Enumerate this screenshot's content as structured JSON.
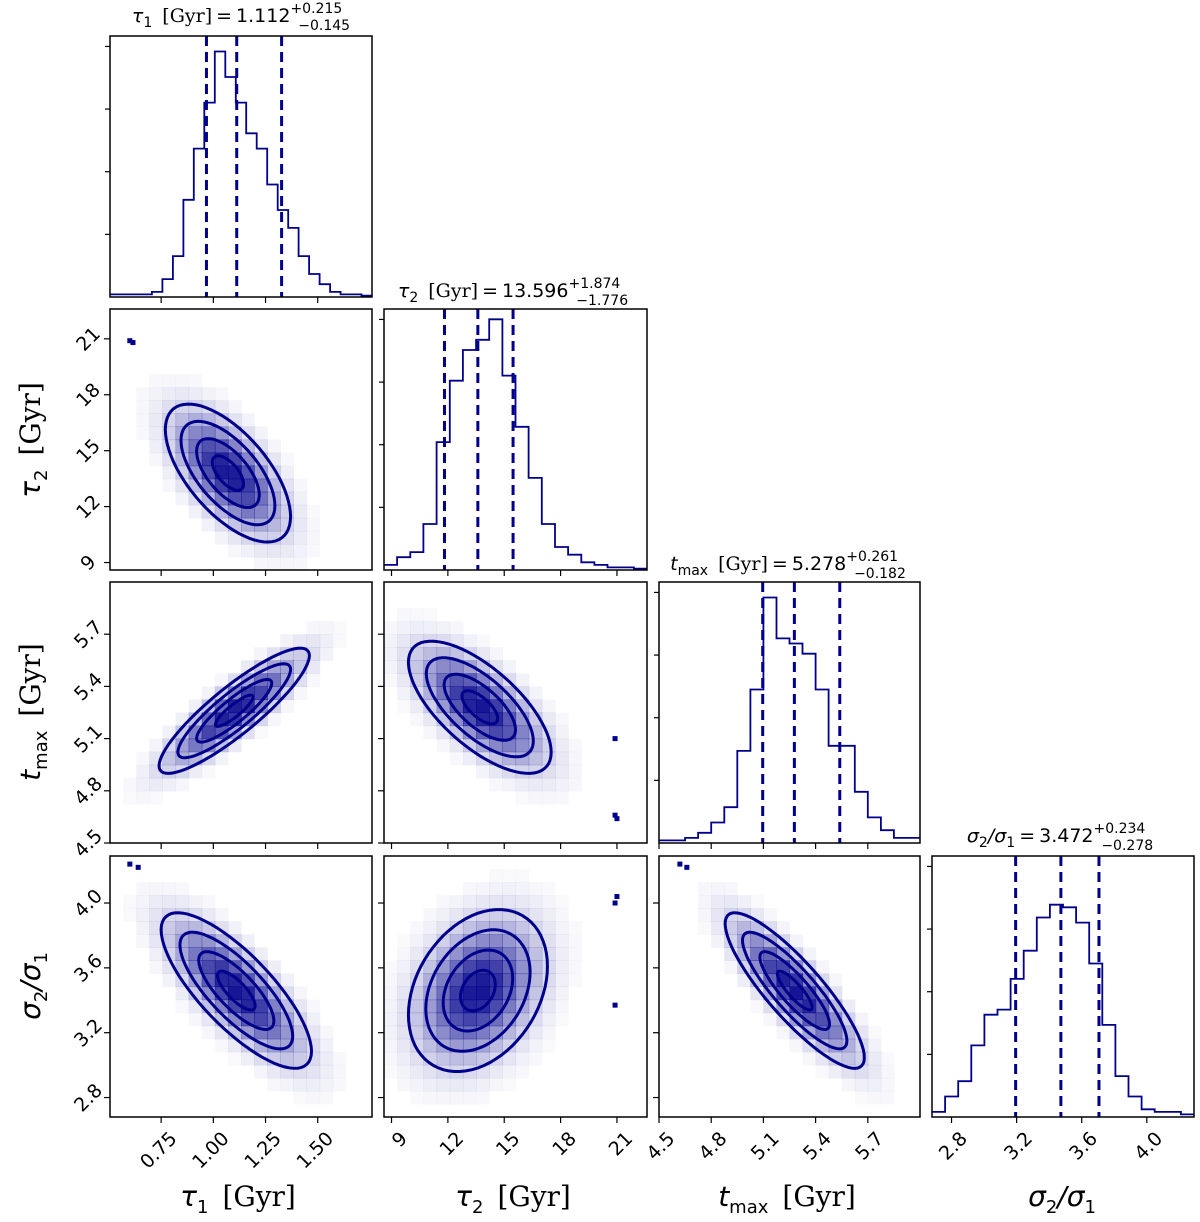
{
  "chart_data": {
    "type": "corner",
    "colors": {
      "line": "#00008b",
      "density": "#00008b",
      "frame": "#000000"
    },
    "parameters": [
      {
        "key": "tau1",
        "symbol": "τ",
        "subscript": "1",
        "unit": "[Gyr]",
        "axis_label": "τ1 [Gyr]",
        "range": [
          0.505,
          1.76
        ],
        "ticks": [
          0.75,
          1.0,
          1.25,
          1.5
        ],
        "tick_labels": [
          "0.75",
          "1.00",
          "1.25",
          "1.50"
        ],
        "title_prefix": "[Gyr] = ",
        "median": "1.112",
        "err_plus": "+0.215",
        "err_minus": "−0.145",
        "median_value": 1.112,
        "q_low": 0.967,
        "q_high": 1.327,
        "hist_counts": [
          0.01,
          0.01,
          0.01,
          0.01,
          0.02,
          0.07,
          0.16,
          0.38,
          0.58,
          0.76,
          0.96,
          0.86,
          0.76,
          0.64,
          0.58,
          0.44,
          0.34,
          0.27,
          0.16,
          0.09,
          0.05,
          0.02,
          0.01,
          0.01,
          0.005
        ]
      },
      {
        "key": "tau2",
        "symbol": "τ",
        "subscript": "2",
        "unit": "[Gyr]",
        "axis_label": "τ2 [Gyr]",
        "range": [
          8.6,
          22.6
        ],
        "ticks": [
          9,
          12,
          15,
          18,
          21
        ],
        "tick_labels": [
          "9",
          "12",
          "15",
          "18",
          "21"
        ],
        "title_prefix": "[Gyr] = ",
        "median": "13.596",
        "err_plus": "+1.874",
        "err_minus": "−1.776",
        "median_value": 13.596,
        "q_low": 11.82,
        "q_high": 15.47,
        "hist_counts": [
          0.02,
          0.05,
          0.07,
          0.18,
          0.5,
          0.74,
          0.86,
          0.9,
          0.98,
          0.76,
          0.56,
          0.36,
          0.18,
          0.09,
          0.06,
          0.03,
          0.02,
          0.01,
          0.01,
          0.005
        ]
      },
      {
        "key": "tmax",
        "symbol": "t",
        "subscript": "max",
        "unit": "[Gyr]",
        "axis_label": "tmax [Gyr]",
        "range": [
          4.5,
          6.0
        ],
        "ticks": [
          4.5,
          4.8,
          5.1,
          5.4,
          5.7
        ],
        "tick_labels": [
          "4.5",
          "4.8",
          "5.1",
          "5.4",
          "5.7"
        ],
        "title_prefix": "[Gyr] = ",
        "median": "5.278",
        "err_plus": "+0.261",
        "err_minus": "−0.182",
        "median_value": 5.278,
        "q_low": 5.096,
        "q_high": 5.539,
        "hist_counts": [
          0.01,
          0.01,
          0.02,
          0.04,
          0.08,
          0.14,
          0.36,
          0.6,
          0.96,
          0.8,
          0.78,
          0.74,
          0.6,
          0.38,
          0.38,
          0.2,
          0.1,
          0.05,
          0.02,
          0.02
        ]
      },
      {
        "key": "ratio",
        "symbol": "σ",
        "subscript": "2",
        "unit": "",
        "axis_label": "σ2/σ1",
        "range": [
          2.68,
          4.29
        ],
        "ticks": [
          2.8,
          3.2,
          3.6,
          4.0
        ],
        "tick_labels": [
          "2.8",
          "3.2",
          "3.6",
          "4.0"
        ],
        "title_prefix": "= ",
        "median": "3.472",
        "err_plus": "+0.234",
        "err_minus": "−0.278",
        "median_value": 3.472,
        "q_low": 3.194,
        "q_high": 3.706,
        "hist_counts": [
          0.02,
          0.08,
          0.14,
          0.28,
          0.4,
          0.42,
          0.54,
          0.65,
          0.78,
          0.83,
          0.82,
          0.76,
          0.6,
          0.36,
          0.16,
          0.08,
          0.03,
          0.02,
          0.02,
          0.01
        ]
      }
    ],
    "pairs": [
      {
        "x": 0,
        "y": 1,
        "mean": [
          1.07,
          13.8
        ],
        "sd": [
          0.15,
          1.85
        ],
        "rho": -0.63,
        "outliers": [
          [
            0.6,
            20.9
          ],
          [
            0.615,
            20.8
          ]
        ]
      },
      {
        "x": 0,
        "y": 2,
        "mean": [
          1.1,
          5.26
        ],
        "sd": [
          0.18,
          0.18
        ],
        "rho": 0.88,
        "outliers": []
      },
      {
        "x": 1,
        "y": 2,
        "mean": [
          13.7,
          5.28
        ],
        "sd": [
          1.9,
          0.19
        ],
        "rho": -0.68,
        "outliers": [
          [
            20.9,
            5.1
          ],
          [
            20.9,
            4.66
          ],
          [
            21.0,
            4.64
          ]
        ]
      },
      {
        "x": 0,
        "y": 3,
        "mean": [
          1.11,
          3.46
        ],
        "sd": [
          0.18,
          0.24
        ],
        "rho": -0.78,
        "outliers": [
          [
            0.6,
            4.24
          ],
          [
            0.64,
            4.22
          ]
        ]
      },
      {
        "x": 1,
        "y": 3,
        "mean": [
          13.6,
          3.46
        ],
        "sd": [
          1.85,
          0.25
        ],
        "rho": 0.3,
        "outliers": [
          [
            20.9,
            4.0
          ],
          [
            21.0,
            4.04
          ],
          [
            20.9,
            3.37
          ]
        ]
      },
      {
        "x": 2,
        "y": 3,
        "mean": [
          5.28,
          3.46
        ],
        "sd": [
          0.2,
          0.24
        ],
        "rho": -0.86,
        "outliers": [
          [
            4.62,
            4.24
          ],
          [
            4.66,
            4.22
          ]
        ]
      }
    ]
  },
  "labels": {
    "tau1_title": {
      "sym": "τ",
      "sub": "1",
      "unit": "[Gyr]",
      "eq": "=",
      "val": "1.112",
      "sup": "+0.215",
      "subv": "−0.145"
    },
    "tau2_title": {
      "sym": "τ",
      "sub": "2",
      "unit": "[Gyr]",
      "eq": "=",
      "val": "13.596",
      "sup": "+1.874",
      "subv": "−1.776"
    },
    "tmax_title": {
      "sym": "t",
      "sub": "max",
      "unit": "[Gyr]",
      "eq": "=",
      "val": "5.278",
      "sup": "+0.261",
      "subv": "−0.182"
    },
    "ratio_title": {
      "sym": "σ",
      "sub": "2",
      "slash": "/σ",
      "sub2": "1",
      "eq": "=",
      "val": "3.472",
      "sup": "+0.234",
      "subv": "−0.278"
    },
    "x_tau1": {
      "sym": "τ",
      "sub": "1",
      "unit": "[Gyr]"
    },
    "x_tau2": {
      "sym": "τ",
      "sub": "2",
      "unit": "[Gyr]"
    },
    "x_tmax": {
      "sym": "t",
      "sub": "max",
      "unit": "[Gyr]"
    },
    "x_ratio": {
      "sym": "σ",
      "sub": "2",
      "slash": "/σ",
      "sub2": "1"
    },
    "y_tau2": {
      "sym": "τ",
      "sub": "2",
      "unit": "[Gyr]"
    },
    "y_tmax": {
      "sym": "t",
      "sub": "max",
      "unit": "[Gyr]"
    },
    "y_ratio": {
      "sym": "σ",
      "sub": "2",
      "slash": "/σ",
      "sub2": "1"
    }
  }
}
